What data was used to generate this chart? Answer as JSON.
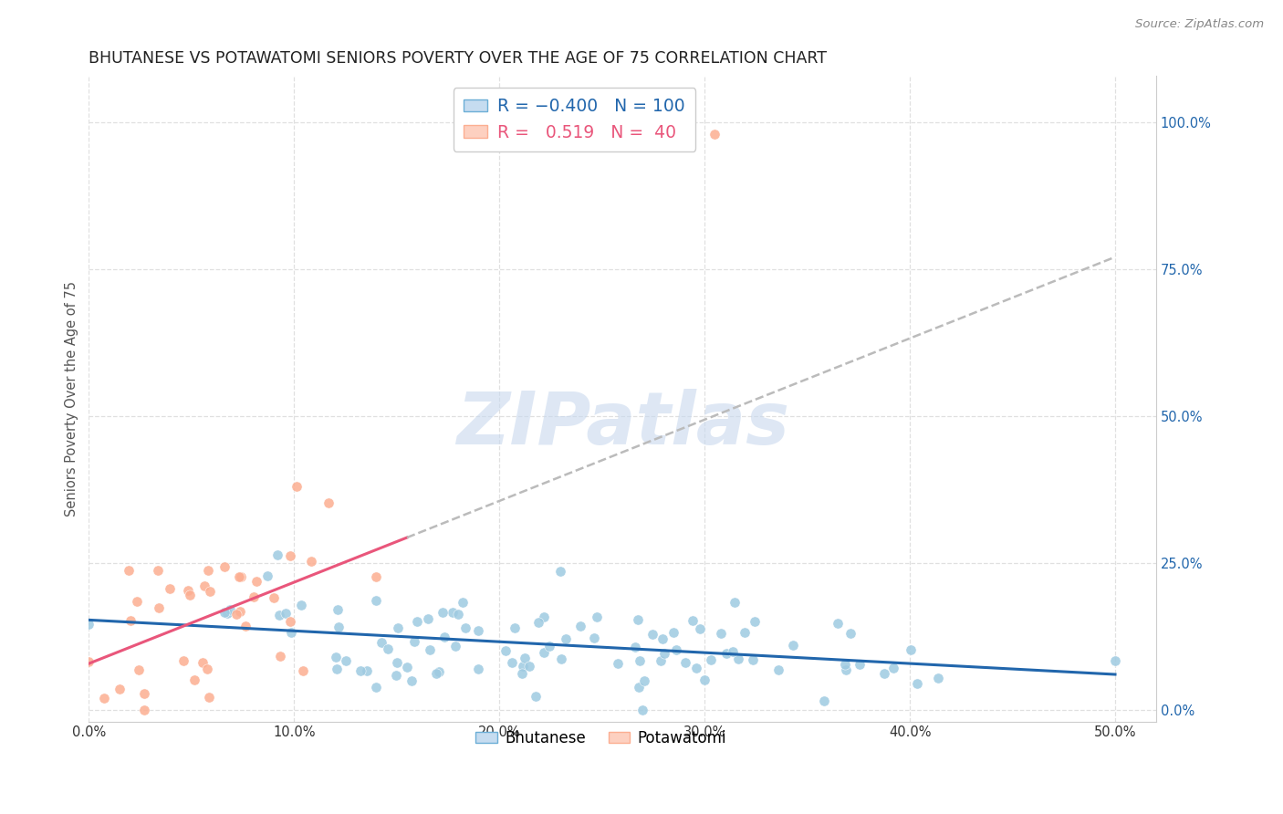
{
  "title": "BHUTANESE VS POTAWATOMI SENIORS POVERTY OVER THE AGE OF 75 CORRELATION CHART",
  "source": "Source: ZipAtlas.com",
  "ylabel": "Seniors Poverty Over the Age of 75",
  "xlim": [
    0.0,
    0.52
  ],
  "ylim": [
    -0.02,
    1.08
  ],
  "bhutanese_color": "#9ecae1",
  "potawatomi_color": "#fcae91",
  "bhutanese_line_color": "#2166ac",
  "potawatomi_line_color": "#e9567b",
  "bhutanese_R": -0.4,
  "bhutanese_N": 100,
  "potawatomi_R": 0.519,
  "potawatomi_N": 40,
  "watermark_text": "ZIPatlas",
  "background_color": "#ffffff",
  "grid_color": "#e0e0e0",
  "title_color": "#222222",
  "tick_color_right": "#2166ac",
  "tick_color_bottom": "#333333",
  "ytick_vals": [
    0.0,
    0.25,
    0.5,
    0.75,
    1.0
  ],
  "xtick_vals": [
    0.0,
    0.1,
    0.2,
    0.3,
    0.4,
    0.5
  ]
}
